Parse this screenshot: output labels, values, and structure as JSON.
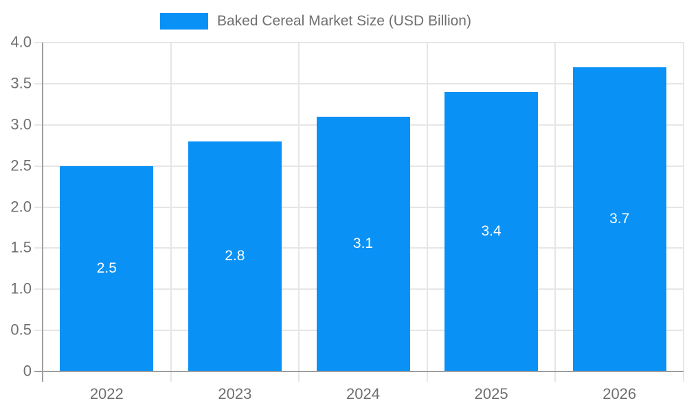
{
  "chart_data": {
    "type": "bar",
    "title": "Baked Cereal Market Size (USD Billion)",
    "categories": [
      "2022",
      "2023",
      "2024",
      "2025",
      "2026"
    ],
    "values": [
      2.5,
      2.8,
      3.1,
      3.4,
      3.7
    ],
    "bar_labels": [
      "2.5",
      "2.8",
      "3.1",
      "3.4",
      "3.7"
    ],
    "xlabel": "",
    "ylabel": "",
    "ylim": [
      0,
      4.0
    ],
    "y_tick_values": [
      0,
      0.5,
      1.0,
      1.5,
      2.0,
      2.5,
      3.0,
      3.5,
      4.0
    ],
    "y_tick_labels": [
      "0",
      "0.5",
      "1.0",
      "1.5",
      "2.0",
      "2.5",
      "3.0",
      "3.5",
      "4.0"
    ],
    "grid": true,
    "legend_position": "top",
    "legend": {
      "label": "Baked Cereal Market Size (USD Billion)"
    },
    "colors": {
      "bar": "#0991f5",
      "grid": "#e6e6e6",
      "axis": "#9e9e9e",
      "text": "#6f6f6f",
      "bar_value_text": "#ffffff"
    }
  }
}
